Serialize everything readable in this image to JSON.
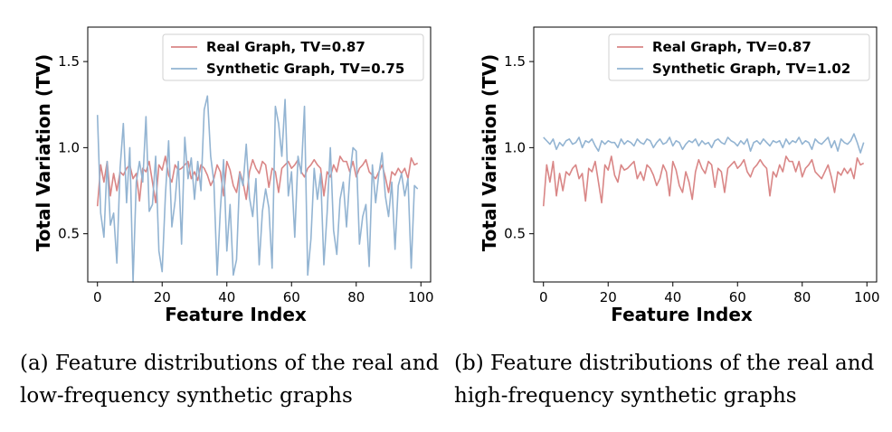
{
  "chart_data": [
    {
      "type": "line",
      "id": "a",
      "xlabel": "Feature Index",
      "ylabel": "Total Variation (TV)",
      "xlim": [
        -3,
        103
      ],
      "ylim": [
        0.22,
        1.7
      ],
      "xticks": [
        0,
        20,
        40,
        60,
        80,
        100
      ],
      "yticks": [
        0.5,
        1.0,
        1.5
      ],
      "ytick_labels": [
        "0.5",
        "1.0",
        "1.5"
      ],
      "legend_position": "top-right",
      "series": [
        {
          "name": "Real Graph, TV=0.87",
          "color": "#d98686",
          "values": [
            0.66,
            0.9,
            0.8,
            0.92,
            0.72,
            0.85,
            0.75,
            0.86,
            0.84,
            0.88,
            0.9,
            0.82,
            0.85,
            0.69,
            0.88,
            0.86,
            0.92,
            0.8,
            0.68,
            0.9,
            0.87,
            0.95,
            0.84,
            0.8,
            0.9,
            0.87,
            0.88,
            0.9,
            0.92,
            0.82,
            0.86,
            0.81,
            0.9,
            0.88,
            0.84,
            0.78,
            0.82,
            0.9,
            0.86,
            0.72,
            0.92,
            0.87,
            0.78,
            0.74,
            0.86,
            0.8,
            0.7,
            0.86,
            0.93,
            0.88,
            0.85,
            0.92,
            0.9,
            0.77,
            0.88,
            0.86,
            0.74,
            0.88,
            0.9,
            0.92,
            0.88,
            0.9,
            0.93,
            0.86,
            0.83,
            0.88,
            0.9,
            0.93,
            0.9,
            0.88,
            0.72,
            0.86,
            0.83,
            0.9,
            0.86,
            0.95,
            0.92,
            0.92,
            0.86,
            0.92,
            0.83,
            0.88,
            0.9,
            0.93,
            0.86,
            0.84,
            0.82,
            0.86,
            0.9,
            0.83,
            0.74,
            0.86,
            0.84,
            0.88,
            0.85,
            0.88,
            0.82,
            0.94,
            0.9,
            0.91
          ]
        },
        {
          "name": "Synthetic Graph, TV=0.75",
          "color": "#93b4d2",
          "values": [
            1.19,
            0.62,
            0.48,
            0.92,
            0.55,
            0.62,
            0.33,
            0.88,
            1.14,
            0.68,
            1.0,
            0.22,
            0.8,
            0.92,
            0.8,
            1.18,
            0.63,
            0.67,
            0.95,
            0.4,
            0.28,
            0.72,
            1.04,
            0.54,
            0.69,
            0.92,
            0.44,
            1.06,
            0.82,
            0.94,
            0.7,
            0.92,
            0.75,
            1.22,
            1.3,
            0.95,
            0.8,
            0.26,
            0.64,
            0.93,
            0.4,
            0.67,
            0.26,
            0.35,
            0.85,
            0.78,
            1.02,
            0.71,
            0.6,
            0.82,
            0.32,
            0.63,
            0.76,
            0.65,
            0.3,
            1.24,
            1.14,
            0.95,
            1.28,
            0.72,
            0.86,
            0.48,
            0.95,
            0.85,
            1.24,
            0.26,
            0.47,
            0.88,
            0.7,
            0.85,
            0.32,
            0.62,
            1.0,
            0.52,
            0.38,
            0.7,
            0.8,
            0.54,
            0.83,
            1.0,
            0.98,
            0.44,
            0.6,
            0.67,
            0.31,
            0.9,
            0.68,
            0.85,
            0.97,
            0.72,
            0.6,
            0.8,
            0.41,
            0.78,
            0.85,
            0.72,
            0.82,
            0.3,
            0.78,
            0.76
          ]
        }
      ]
    },
    {
      "type": "line",
      "id": "b",
      "xlabel": "Feature Index",
      "ylabel": "Total Variation (TV)",
      "xlim": [
        -3,
        103
      ],
      "ylim": [
        0.22,
        1.7
      ],
      "xticks": [
        0,
        20,
        40,
        60,
        80,
        100
      ],
      "yticks": [
        0.5,
        1.0,
        1.5
      ],
      "ytick_labels": [
        "0.5",
        "1.0",
        "1.5"
      ],
      "legend_position": "top-right",
      "series": [
        {
          "name": "Real Graph, TV=0.87",
          "color": "#d98686",
          "values": [
            0.66,
            0.9,
            0.8,
            0.92,
            0.72,
            0.85,
            0.75,
            0.86,
            0.84,
            0.88,
            0.9,
            0.82,
            0.85,
            0.69,
            0.88,
            0.86,
            0.92,
            0.8,
            0.68,
            0.9,
            0.87,
            0.95,
            0.84,
            0.8,
            0.9,
            0.87,
            0.88,
            0.9,
            0.92,
            0.82,
            0.86,
            0.81,
            0.9,
            0.88,
            0.84,
            0.78,
            0.82,
            0.9,
            0.86,
            0.72,
            0.92,
            0.87,
            0.78,
            0.74,
            0.86,
            0.8,
            0.7,
            0.86,
            0.93,
            0.88,
            0.85,
            0.92,
            0.9,
            0.77,
            0.88,
            0.86,
            0.74,
            0.88,
            0.9,
            0.92,
            0.88,
            0.9,
            0.93,
            0.86,
            0.83,
            0.88,
            0.9,
            0.93,
            0.9,
            0.88,
            0.72,
            0.86,
            0.83,
            0.9,
            0.86,
            0.95,
            0.92,
            0.92,
            0.86,
            0.92,
            0.83,
            0.88,
            0.9,
            0.93,
            0.86,
            0.84,
            0.82,
            0.86,
            0.9,
            0.83,
            0.74,
            0.86,
            0.84,
            0.88,
            0.85,
            0.88,
            0.82,
            0.94,
            0.9,
            0.91
          ]
        },
        {
          "name": "Synthetic Graph, TV=1.02",
          "color": "#93b4d2",
          "values": [
            1.06,
            1.04,
            1.02,
            1.05,
            0.99,
            1.03,
            1.01,
            1.04,
            1.05,
            1.02,
            1.03,
            1.06,
            1.0,
            1.04,
            1.03,
            1.05,
            1.01,
            0.98,
            1.04,
            1.02,
            1.04,
            1.03,
            1.03,
            1.0,
            1.05,
            1.02,
            1.04,
            1.03,
            1.01,
            1.05,
            1.03,
            1.02,
            1.05,
            1.04,
            1.0,
            1.03,
            1.05,
            1.02,
            1.03,
            1.06,
            1.01,
            1.04,
            1.03,
            0.99,
            1.02,
            1.04,
            1.03,
            1.05,
            1.01,
            1.04,
            1.02,
            1.03,
            1.0,
            1.04,
            1.05,
            1.03,
            1.02,
            1.06,
            1.04,
            1.03,
            1.01,
            1.04,
            1.02,
            1.05,
            0.98,
            1.03,
            1.04,
            1.02,
            1.05,
            1.03,
            1.01,
            1.04,
            1.03,
            1.04,
            1.0,
            1.05,
            1.02,
            1.04,
            1.03,
            1.06,
            1.02,
            1.04,
            1.03,
            0.99,
            1.05,
            1.03,
            1.02,
            1.04,
            1.06,
            1.0,
            1.04,
            0.98,
            1.05,
            1.03,
            1.02,
            1.04,
            1.08,
            1.03,
            0.97,
            1.03
          ]
        }
      ]
    }
  ],
  "captions": {
    "a": {
      "line1": "(a)  Feature distributions of the real and",
      "line2": "low-frequency synthetic graphs"
    },
    "b": {
      "line1": "(b)  Feature distributions of the real and",
      "line2": "high-frequency synthetic graphs"
    }
  }
}
